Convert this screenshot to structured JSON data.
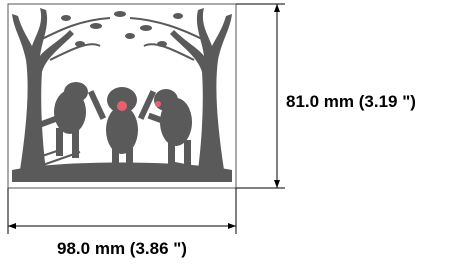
{
  "dimensions": {
    "height_label": "81.0 mm (3.19 \")",
    "width_label": "98.0 mm (3.86 \")"
  }
}
